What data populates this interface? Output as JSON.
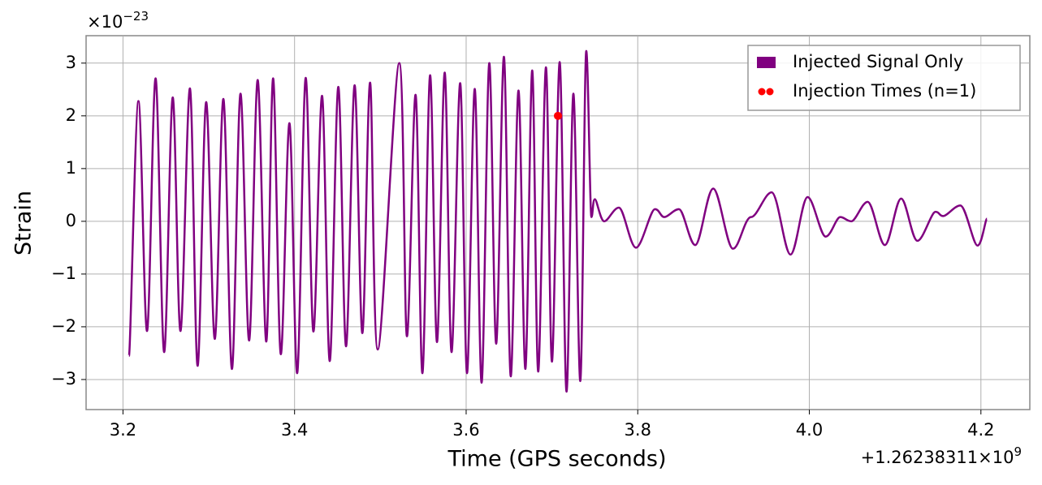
{
  "chart_data": {
    "type": "line",
    "xlabel": "Time (GPS seconds)",
    "ylabel": "Strain",
    "y_offset": {
      "base": "×10",
      "exponent": "−23"
    },
    "x_offset": {
      "base": "+1.26238311×10",
      "exponent": "9"
    },
    "xlim": [
      3.157,
      4.257
    ],
    "ylim": [
      -3.57,
      3.52
    ],
    "xticks": [
      3.2,
      3.4,
      3.6,
      3.8,
      4.0,
      4.2
    ],
    "yticks": [
      {
        "value": -3,
        "label": "−3"
      },
      {
        "value": -2,
        "label": "−2"
      },
      {
        "value": -1,
        "label": "−1"
      },
      0,
      1,
      2,
      3
    ],
    "grid": true,
    "legend": "upper right",
    "series": [
      {
        "name": "Injected Signal Only",
        "type": "line",
        "color": "#800080",
        "x": [
          3.207,
          3.218,
          3.228,
          3.238,
          3.248,
          3.258,
          3.267,
          3.278,
          3.287,
          3.297,
          3.307,
          3.317,
          3.327,
          3.337,
          3.347,
          3.357,
          3.367,
          3.375,
          3.384,
          3.394,
          3.403,
          3.413,
          3.422,
          3.432,
          3.441,
          3.451,
          3.46,
          3.47,
          3.479,
          3.488,
          3.497,
          3.522,
          3.531,
          3.541,
          3.549,
          3.558,
          3.566,
          3.575,
          3.583,
          3.593,
          3.601,
          3.61,
          3.618,
          3.627,
          3.635,
          3.644,
          3.652,
          3.661,
          3.669,
          3.677,
          3.684,
          3.693,
          3.7,
          3.709,
          3.717,
          3.725,
          3.733,
          3.74,
          3.746,
          3.75,
          3.761,
          3.778,
          3.798,
          3.82,
          3.831,
          3.848,
          3.867,
          3.888,
          3.911,
          3.932,
          3.956,
          3.978,
          3.998,
          4.019,
          4.036,
          4.049,
          4.068,
          4.088,
          4.107,
          4.126,
          4.147,
          4.156,
          4.176,
          4.196,
          4.207
        ],
        "values": [
          -2.55,
          2.28,
          -2.08,
          2.71,
          -2.48,
          2.35,
          -2.08,
          2.52,
          -2.74,
          2.26,
          -2.23,
          2.32,
          -2.8,
          2.42,
          -2.26,
          2.68,
          -2.28,
          2.71,
          -2.52,
          1.86,
          -2.88,
          2.72,
          -2.09,
          2.38,
          -2.65,
          2.55,
          -2.37,
          2.58,
          -2.12,
          2.63,
          -2.43,
          3.0,
          -2.18,
          2.4,
          -2.88,
          2.77,
          -2.29,
          2.82,
          -2.48,
          2.62,
          -2.88,
          2.51,
          -3.06,
          3.0,
          -2.32,
          3.12,
          -2.94,
          2.48,
          -2.8,
          2.86,
          -2.85,
          2.92,
          -2.66,
          3.02,
          -3.23,
          2.42,
          -3.03,
          3.23,
          0.08,
          0.42,
          0.0,
          0.26,
          -0.5,
          0.23,
          0.08,
          0.23,
          -0.45,
          0.62,
          -0.52,
          0.08,
          0.55,
          -0.63,
          0.46,
          -0.29,
          0.08,
          0.0,
          0.37,
          -0.45,
          0.43,
          -0.37,
          0.18,
          0.1,
          0.3,
          -0.46,
          0.05
        ]
      },
      {
        "name": "Injection Times (n=1)",
        "type": "scatter",
        "color": "#ff0000",
        "x": [
          3.707
        ],
        "values": [
          2.0
        ]
      }
    ]
  }
}
